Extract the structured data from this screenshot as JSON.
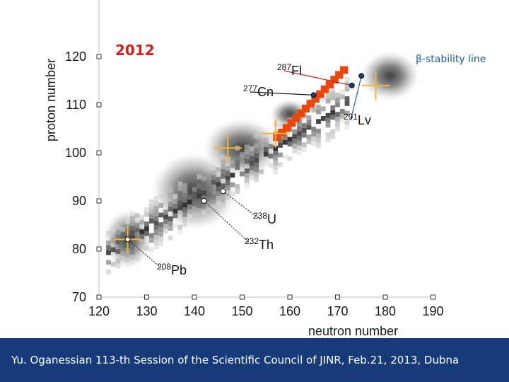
{
  "chart_data": {
    "type": "heatmap",
    "xlabel": "neutron number",
    "ylabel": "proton number",
    "xlim": [
      120,
      190
    ],
    "ylim": [
      70,
      130
    ],
    "x_ticks": [
      120,
      130,
      140,
      150,
      160,
      170,
      180,
      190
    ],
    "y_ticks": [
      70,
      80,
      90,
      100,
      110,
      120
    ],
    "year_label": "2012",
    "stability_line_label": "β-stability line",
    "shell_centers": [
      {
        "n": 126,
        "z": 82
      },
      {
        "n": 157,
        "z": 104
      },
      {
        "n": 147,
        "z": 101
      },
      {
        "n": 178,
        "z": 114
      }
    ],
    "islands": [
      {
        "n": 126,
        "z": 82,
        "rn": 5,
        "rz": 6
      },
      {
        "n": 140,
        "z": 92,
        "rn": 9,
        "rz": 8
      },
      {
        "n": 150,
        "z": 101,
        "rn": 8,
        "rz": 6
      },
      {
        "n": 160,
        "z": 108,
        "rn": 4,
        "rz": 3
      },
      {
        "n": 181,
        "z": 116,
        "rn": 6,
        "rz": 5
      }
    ],
    "superheavy_steps": [
      {
        "n": 157,
        "z": 103
      },
      {
        "n": 158,
        "z": 104
      },
      {
        "n": 159,
        "z": 105
      },
      {
        "n": 160,
        "z": 106
      },
      {
        "n": 161,
        "z": 107
      },
      {
        "n": 162,
        "z": 108
      },
      {
        "n": 163,
        "z": 109
      },
      {
        "n": 164,
        "z": 110
      },
      {
        "n": 165,
        "z": 111
      },
      {
        "n": 166,
        "z": 112
      },
      {
        "n": 167,
        "z": 113
      },
      {
        "n": 168,
        "z": 114
      },
      {
        "n": 169,
        "z": 115
      },
      {
        "n": 170,
        "z": 116
      },
      {
        "n": 171,
        "z": 117
      }
    ],
    "nuclides": [
      {
        "mass": "208",
        "symbol": "Pb",
        "n": 126,
        "z": 82
      },
      {
        "mass": "232",
        "symbol": "Th",
        "n": 142,
        "z": 90
      },
      {
        "mass": "238",
        "symbol": "U",
        "n": 146,
        "z": 92
      },
      {
        "mass": "277",
        "symbol": "Cn",
        "n": 165,
        "z": 112
      },
      {
        "mass": "287",
        "symbol": "Fl",
        "n": 173,
        "z": 114
      },
      {
        "mass": "291",
        "symbol": "Lv",
        "n": 175,
        "z": 116
      }
    ]
  },
  "colors": {
    "superheavy": "#e8480e",
    "shell_cross": "#f0b43c",
    "year": "#d0201c",
    "stability": "#1a5aa8",
    "footer_bg": "#163a7a"
  },
  "footer": {
    "text": "Yu. Oganessian  113-th Session of the Scientific Council of JINR, Feb.21, 2013, Dubna"
  }
}
